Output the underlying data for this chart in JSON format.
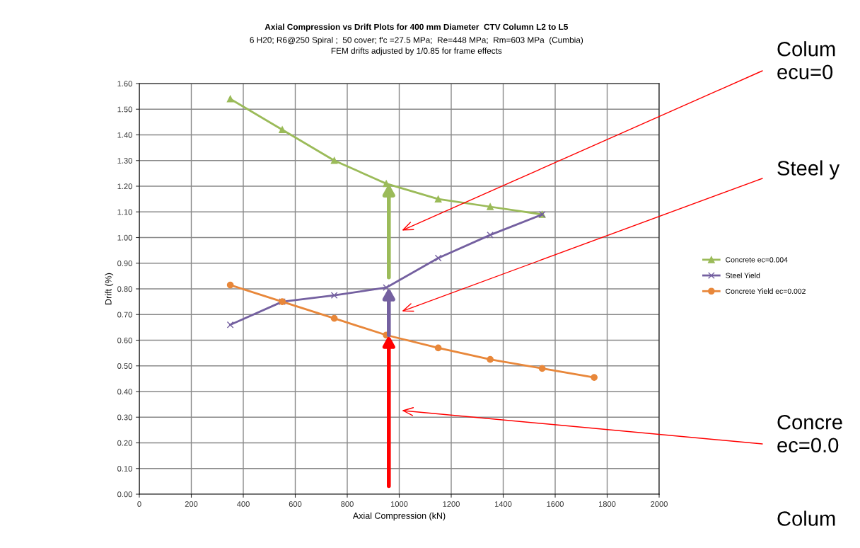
{
  "chart_data": {
    "type": "line",
    "title": "Axial Compression vs Drift Plots for 400 mm Diameter  CTV Column L2 to L5",
    "subtitle": "6 H20; R6@250 Spiral ;  50 cover; f'c =27.5 MPa;  Re=448 MPa;  Rm=603 MPa  (Cumbia)\nFEM drifts adjusted by 1/0.85 for frame effects",
    "xlabel": "Axial Compression (kN)",
    "ylabel": "Drift (%)",
    "series": [
      {
        "name": "Concrete ec=0.004",
        "color": "#9bbb59",
        "marker": "triangle",
        "x": [
          350,
          550,
          750,
          950,
          1150,
          1350,
          1550
        ],
        "values": [
          1.54,
          1.42,
          1.3,
          1.21,
          1.15,
          1.12,
          1.09
        ]
      },
      {
        "name": "Steel Yield",
        "color": "#7460a0",
        "marker": "cross",
        "x": [
          350,
          550,
          750,
          950,
          1150,
          1350,
          1550
        ],
        "values": [
          0.66,
          0.75,
          0.775,
          0.805,
          0.92,
          1.01,
          1.09
        ]
      },
      {
        "name": "Concrete Yield ec=0.002",
        "color": "#e8873a",
        "marker": "circle",
        "x": [
          350,
          550,
          750,
          950,
          1150,
          1350,
          1550,
          1750
        ],
        "values": [
          0.815,
          0.75,
          0.685,
          0.62,
          0.57,
          0.525,
          0.49,
          0.455
        ]
      }
    ],
    "annotations": [
      "Colum\necu=0",
      "Steel y",
      "Concre\nec=0.0",
      "Colum"
    ],
    "xlim": [
      0,
      2000
    ],
    "xticks": [
      0,
      200,
      400,
      600,
      800,
      1000,
      1200,
      1400,
      1600,
      1800,
      2000
    ],
    "ylim": [
      0,
      1.6
    ],
    "yticks": [
      {
        "value": 0,
        "label": "0.00"
      },
      {
        "value": 0.1,
        "label": "0.10"
      },
      {
        "value": 0.2,
        "label": "0.20"
      },
      {
        "value": 0.3,
        "label": "0.30"
      },
      {
        "value": 0.4,
        "label": "0.40"
      },
      {
        "value": 0.5,
        "label": "0.50"
      },
      {
        "value": 0.6,
        "label": "0.60"
      },
      {
        "value": 0.7,
        "label": "0.70"
      },
      {
        "value": 0.8,
        "label": "0.80"
      },
      {
        "value": 0.9,
        "label": "0.90"
      },
      {
        "value": 1.0,
        "label": "1.00"
      },
      {
        "value": 1.1,
        "label": "1.10"
      },
      {
        "value": 1.2,
        "label": "1.20"
      },
      {
        "value": 1.3,
        "label": "1.30"
      },
      {
        "value": 1.4,
        "label": "1.40"
      },
      {
        "value": 1.5,
        "label": "1.50"
      },
      {
        "value": 1.6,
        "label": "1.60"
      }
    ],
    "grid": true,
    "legend": "right",
    "line_style": "solid"
  }
}
